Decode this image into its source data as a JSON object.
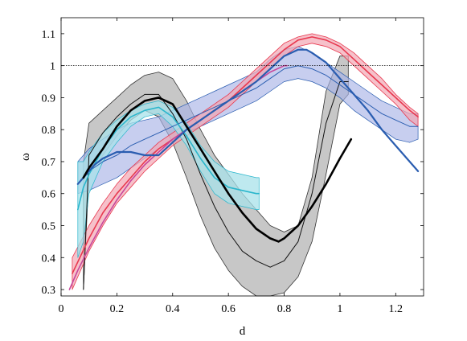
{
  "chart_data": {
    "type": "line",
    "xlabel": "d",
    "ylabel": "ω",
    "xlim": [
      0,
      1.3
    ],
    "ylim": [
      0.28,
      1.15
    ],
    "xticks": [
      0,
      0.2,
      0.4,
      0.6,
      0.8,
      1,
      1.2
    ],
    "xtick_labels": [
      "0",
      "0.2",
      "0.4",
      "0.6",
      "0.8",
      "1",
      "1.2"
    ],
    "yticks": [
      0.3,
      0.4,
      0.5,
      0.6,
      0.7,
      0.8,
      0.9,
      1,
      1.1
    ],
    "ytick_labels": [
      "0.3",
      "0.4",
      "0.5",
      "0.6",
      "0.7",
      "0.8",
      "0.9",
      "1",
      "1.1"
    ],
    "reference_line": {
      "y": 1,
      "style": "dotted"
    },
    "grid": false,
    "colors": {
      "black": "#000000",
      "gray_band": "#bdbdbd",
      "cyan": "#2ab6cc",
      "cyan_band": "#a8e2ea",
      "red": "#e8384f",
      "red_band": "#f2a7b3",
      "blue": "#2a5db0",
      "blue_band": "#a9b3e6",
      "magenta": "#c8469b"
    },
    "series": [
      {
        "style": "gray-band",
        "x": [
          0.08,
          0.1,
          0.15,
          0.2,
          0.25,
          0.3,
          0.35,
          0.4,
          0.45,
          0.5,
          0.55,
          0.6,
          0.65,
          0.7,
          0.75,
          0.8,
          0.85,
          0.9,
          0.95,
          1.0,
          1.03
        ],
        "upper": [
          0.7,
          0.82,
          0.86,
          0.9,
          0.94,
          0.97,
          0.98,
          0.96,
          0.89,
          0.8,
          0.72,
          0.66,
          0.6,
          0.55,
          0.5,
          0.48,
          0.5,
          0.65,
          0.92,
          1.03,
          1.03
        ],
        "lower": [
          0.3,
          0.66,
          0.72,
          0.78,
          0.83,
          0.86,
          0.84,
          0.76,
          0.65,
          0.53,
          0.43,
          0.36,
          0.31,
          0.28,
          0.28,
          0.29,
          0.34,
          0.45,
          0.66,
          0.88,
          0.91
        ]
      },
      {
        "style": "black-thin",
        "x": [
          0.08,
          0.1,
          0.15,
          0.2,
          0.25,
          0.3,
          0.35,
          0.4,
          0.45,
          0.5,
          0.55,
          0.6,
          0.65,
          0.7,
          0.75,
          0.8,
          0.85,
          0.9,
          0.95,
          1.0,
          1.03
        ],
        "y": [
          0.3,
          0.72,
          0.79,
          0.84,
          0.88,
          0.91,
          0.91,
          0.85,
          0.77,
          0.66,
          0.56,
          0.48,
          0.42,
          0.39,
          0.37,
          0.39,
          0.45,
          0.6,
          0.82,
          0.95,
          0.95
        ]
      },
      {
        "style": "black-thick",
        "x": [
          0.08,
          0.1,
          0.15,
          0.2,
          0.25,
          0.3,
          0.35,
          0.4,
          0.45,
          0.5,
          0.55,
          0.6,
          0.65,
          0.7,
          0.75,
          0.78,
          0.8,
          0.85,
          0.9,
          0.95,
          1.0,
          1.04
        ],
        "y": [
          0.65,
          0.68,
          0.74,
          0.81,
          0.86,
          0.89,
          0.9,
          0.88,
          0.81,
          0.74,
          0.67,
          0.6,
          0.54,
          0.49,
          0.46,
          0.45,
          0.46,
          0.5,
          0.56,
          0.63,
          0.71,
          0.77
        ]
      },
      {
        "style": "cyan-band",
        "x": [
          0.06,
          0.08,
          0.1,
          0.15,
          0.2,
          0.25,
          0.3,
          0.35,
          0.4,
          0.45,
          0.5,
          0.55,
          0.6,
          0.65,
          0.7,
          0.71
        ],
        "upper": [
          0.7,
          0.7,
          0.73,
          0.79,
          0.83,
          0.86,
          0.88,
          0.89,
          0.87,
          0.82,
          0.75,
          0.7,
          0.67,
          0.66,
          0.65,
          0.65
        ],
        "lower": [
          0.4,
          0.45,
          0.6,
          0.7,
          0.76,
          0.81,
          0.84,
          0.85,
          0.81,
          0.75,
          0.67,
          0.6,
          0.57,
          0.56,
          0.55,
          0.55
        ]
      },
      {
        "style": "cyan",
        "x": [
          0.06,
          0.08,
          0.1,
          0.15,
          0.2,
          0.25,
          0.3,
          0.35,
          0.4,
          0.45,
          0.5,
          0.55,
          0.6,
          0.65,
          0.7,
          0.71
        ],
        "y": [
          0.55,
          0.62,
          0.66,
          0.74,
          0.8,
          0.84,
          0.86,
          0.87,
          0.84,
          0.78,
          0.71,
          0.65,
          0.62,
          0.61,
          0.6,
          0.6
        ]
      },
      {
        "style": "blue-band",
        "x": [
          0.06,
          0.1,
          0.15,
          0.2,
          0.25,
          0.3,
          0.35,
          0.4,
          0.45,
          0.5,
          0.55,
          0.6,
          0.65,
          0.7,
          0.75,
          0.8,
          0.85,
          0.9,
          0.95,
          1.0,
          1.05,
          1.1,
          1.15,
          1.2,
          1.25,
          1.28
        ],
        "upper": [
          0.7,
          0.74,
          0.77,
          0.8,
          0.82,
          0.83,
          0.84,
          0.86,
          0.88,
          0.9,
          0.92,
          0.94,
          0.96,
          0.98,
          1.02,
          1.05,
          1.06,
          1.04,
          1.01,
          0.98,
          0.95,
          0.92,
          0.89,
          0.87,
          0.85,
          0.85
        ],
        "lower": [
          0.6,
          0.61,
          0.63,
          0.65,
          0.68,
          0.71,
          0.74,
          0.77,
          0.79,
          0.81,
          0.83,
          0.85,
          0.87,
          0.89,
          0.92,
          0.95,
          0.96,
          0.95,
          0.93,
          0.9,
          0.86,
          0.83,
          0.8,
          0.77,
          0.76,
          0.77
        ]
      },
      {
        "style": "blue-thin",
        "x": [
          0.06,
          0.1,
          0.15,
          0.2,
          0.25,
          0.3,
          0.35,
          0.4,
          0.45,
          0.5,
          0.55,
          0.6,
          0.65,
          0.7,
          0.75,
          0.8,
          0.85,
          0.9,
          0.95,
          1.0,
          1.05,
          1.1,
          1.15,
          1.2,
          1.25,
          1.28
        ],
        "y": [
          0.63,
          0.67,
          0.7,
          0.72,
          0.75,
          0.77,
          0.79,
          0.81,
          0.83,
          0.85,
          0.87,
          0.89,
          0.91,
          0.93,
          0.96,
          0.99,
          1.0,
          0.99,
          0.97,
          0.94,
          0.91,
          0.88,
          0.85,
          0.83,
          0.81,
          0.81
        ]
      },
      {
        "style": "blue-thick",
        "x": [
          0.06,
          0.08,
          0.1,
          0.12,
          0.15,
          0.2,
          0.25,
          0.3,
          0.35,
          0.4,
          0.45,
          0.5,
          0.55,
          0.6,
          0.65,
          0.7,
          0.75,
          0.8,
          0.85,
          0.88,
          0.9,
          0.95,
          1.0,
          1.05,
          1.1,
          1.15,
          1.2,
          1.25,
          1.28
        ],
        "y": [
          0.63,
          0.65,
          0.67,
          0.69,
          0.71,
          0.73,
          0.73,
          0.72,
          0.72,
          0.76,
          0.8,
          0.83,
          0.86,
          0.89,
          0.92,
          0.95,
          0.99,
          1.03,
          1.05,
          1.05,
          1.04,
          1.01,
          0.96,
          0.91,
          0.86,
          0.8,
          0.75,
          0.7,
          0.67
        ]
      },
      {
        "style": "red-band",
        "x": [
          0.04,
          0.1,
          0.15,
          0.2,
          0.25,
          0.3,
          0.35,
          0.4,
          0.45,
          0.5,
          0.55,
          0.6,
          0.65,
          0.7,
          0.75,
          0.8,
          0.85,
          0.9,
          0.95,
          1.0,
          1.05,
          1.1,
          1.15,
          1.2,
          1.25,
          1.28
        ],
        "upper": [
          0.4,
          0.5,
          0.57,
          0.63,
          0.68,
          0.72,
          0.76,
          0.79,
          0.82,
          0.85,
          0.88,
          0.91,
          0.95,
          0.99,
          1.03,
          1.07,
          1.09,
          1.1,
          1.09,
          1.07,
          1.04,
          1.0,
          0.96,
          0.91,
          0.87,
          0.85
        ],
        "lower": [
          0.3,
          0.42,
          0.5,
          0.57,
          0.62,
          0.67,
          0.71,
          0.75,
          0.78,
          0.81,
          0.84,
          0.87,
          0.91,
          0.95,
          0.99,
          1.03,
          1.06,
          1.07,
          1.06,
          1.04,
          1.0,
          0.96,
          0.92,
          0.88,
          0.83,
          0.81
        ]
      },
      {
        "style": "red",
        "x": [
          0.04,
          0.1,
          0.15,
          0.2,
          0.25,
          0.3,
          0.35,
          0.4,
          0.45,
          0.5,
          0.55,
          0.6,
          0.65,
          0.7,
          0.75,
          0.8,
          0.85,
          0.9,
          0.95,
          1.0,
          1.05,
          1.1,
          1.15,
          1.2,
          1.25,
          1.28
        ],
        "y": [
          0.35,
          0.46,
          0.54,
          0.6,
          0.65,
          0.7,
          0.74,
          0.77,
          0.8,
          0.83,
          0.86,
          0.89,
          0.93,
          0.97,
          1.01,
          1.05,
          1.08,
          1.09,
          1.08,
          1.06,
          1.02,
          0.98,
          0.94,
          0.9,
          0.86,
          0.84
        ]
      },
      {
        "style": "magenta",
        "x": [
          0.03,
          0.06,
          0.1,
          0.15,
          0.2,
          0.25,
          0.3,
          0.35,
          0.4,
          0.45,
          0.5,
          0.55,
          0.6,
          0.65,
          0.7,
          0.75,
          0.8,
          0.81
        ],
        "y": [
          0.3,
          0.36,
          0.43,
          0.51,
          0.58,
          0.64,
          0.69,
          0.73,
          0.77,
          0.8,
          0.83,
          0.86,
          0.89,
          0.92,
          0.95,
          0.98,
          1.0,
          1.0
        ]
      }
    ]
  }
}
